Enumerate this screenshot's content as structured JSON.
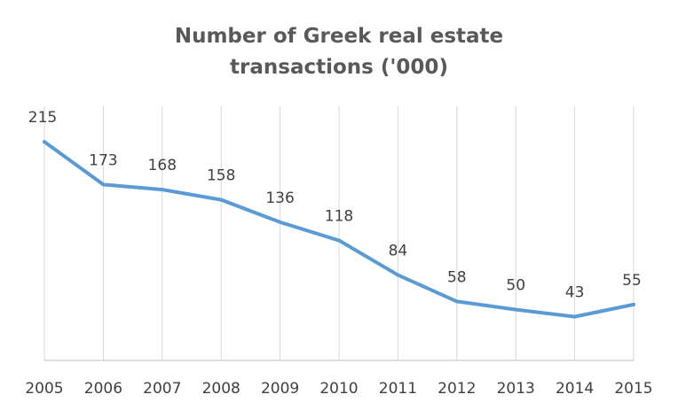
{
  "chart_data": {
    "type": "line",
    "title_lines": [
      "Number of Greek real estate",
      "transactions ('000)"
    ],
    "x": [
      "2005",
      "2006",
      "2007",
      "2008",
      "2009",
      "2010",
      "2011",
      "2012",
      "2013",
      "2014",
      "2015"
    ],
    "series": [
      {
        "values": [
          215,
          173,
          168,
          158,
          136,
          118,
          84,
          58,
          50,
          43,
          55
        ],
        "color": "#5b9bd5"
      }
    ],
    "data_labels": [
      "215",
      "173",
      "168",
      "158",
      "136",
      "118",
      "84",
      "58",
      "50",
      "43",
      "55"
    ],
    "xlabel": "",
    "ylabel": "",
    "ylim": [
      0,
      250
    ],
    "vertical_grid": true,
    "horizontal_grid": false,
    "legend": "none"
  }
}
